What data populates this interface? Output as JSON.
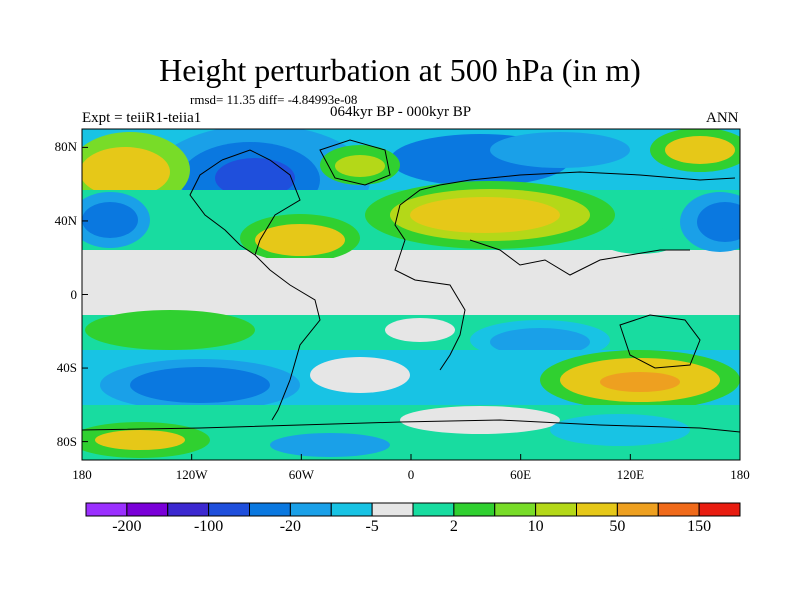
{
  "title": "Height perturbation at 500 hPa (in m)",
  "stats_line": "rmsd= 11.35 diff= -4.84993e-08",
  "left_label": "Expt = teiiR1-teiia1",
  "center_label": "064kyr BP - 000kyr BP",
  "right_label": "ANN",
  "map": {
    "projection": "cylindrical-equidistant",
    "lon_range": [
      -180,
      180
    ],
    "lat_range": [
      -90,
      90
    ],
    "y_ticks": [
      "80N",
      "40N",
      "0",
      "40S",
      "80S"
    ],
    "x_ticks": [
      "180",
      "120W",
      "60W",
      "0",
      "60E",
      "120E",
      "180"
    ],
    "coastlines": "black",
    "missing_color": "#e6e6e6"
  },
  "colorbar": {
    "colors": [
      "#9b30ff",
      "#7a00d8",
      "#3c28d0",
      "#1f4fdc",
      "#0a78e0",
      "#1aa0e8",
      "#18c3e4",
      "#e6e6e6",
      "#18dca0",
      "#30d030",
      "#78dc28",
      "#b4d818",
      "#e6c818",
      "#eea020",
      "#f06a1a",
      "#e81c10"
    ],
    "labels": [
      "-200",
      "-100",
      "-20",
      "-5",
      "2",
      "10",
      "50",
      "150"
    ]
  }
}
